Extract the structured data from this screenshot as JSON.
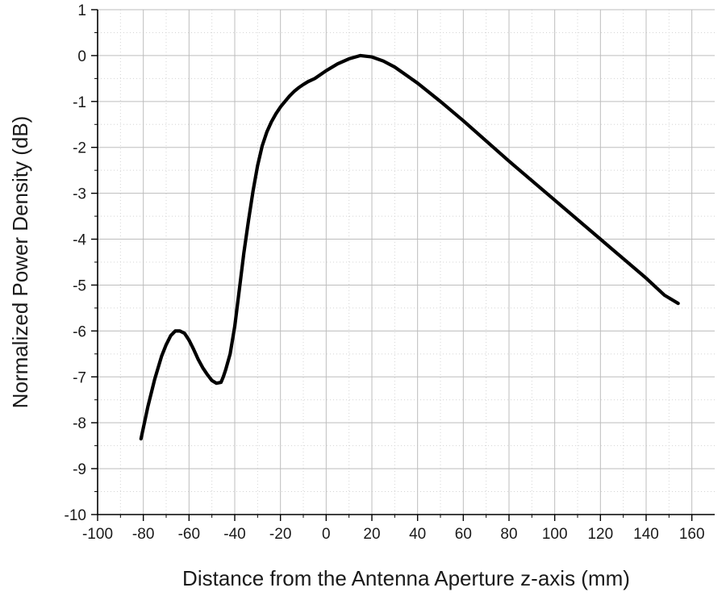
{
  "chart_data": {
    "type": "line",
    "xlabel": "Distance from the Antenna Aperture z-axis (mm)",
    "ylabel": "Normalized Power Density (dB)",
    "xlim": [
      -100,
      170
    ],
    "ylim": [
      -10,
      1
    ],
    "xticks": [
      -100,
      -80,
      -60,
      -40,
      -20,
      0,
      20,
      40,
      60,
      80,
      100,
      120,
      140,
      160
    ],
    "xtick_labels": [
      "-100",
      "-80",
      "-60",
      "-40",
      "-20",
      "0",
      "20",
      "40",
      "60",
      "80",
      "100",
      "120",
      "140",
      "160"
    ],
    "yticks": [
      1,
      0,
      -1,
      -2,
      -3,
      -4,
      -5,
      -6,
      -7,
      -8,
      -9,
      -10
    ],
    "ytick_labels": [
      "1",
      "0",
      "-1",
      "-2",
      "-3",
      "-4",
      "-5",
      "-6",
      "-7",
      "-8",
      "-9",
      "-10"
    ],
    "grid": true,
    "minor_grid": true,
    "line_color": "#000000",
    "series": [
      {
        "x": [
          -81,
          -78,
          -75,
          -72,
          -70,
          -68,
          -66,
          -64,
          -62,
          -60,
          -58,
          -56,
          -54,
          -52,
          -50,
          -48,
          -46,
          -45,
          -44,
          -42,
          -40,
          -38,
          -36,
          -34,
          -32,
          -30,
          -28,
          -26,
          -24,
          -22,
          -20,
          -18,
          -16,
          -14,
          -12,
          -10,
          -8,
          -5,
          0,
          5,
          10,
          15,
          20,
          25,
          30,
          40,
          50,
          60,
          80,
          100,
          120,
          140,
          148,
          154
        ],
        "y": [
          -8.35,
          -7.65,
          -7.05,
          -6.55,
          -6.3,
          -6.1,
          -6.0,
          -6.0,
          -6.05,
          -6.2,
          -6.4,
          -6.62,
          -6.8,
          -6.95,
          -7.08,
          -7.14,
          -7.12,
          -7.0,
          -6.85,
          -6.5,
          -5.9,
          -5.1,
          -4.3,
          -3.6,
          -2.95,
          -2.4,
          -1.97,
          -1.67,
          -1.45,
          -1.27,
          -1.12,
          -1.0,
          -0.88,
          -0.78,
          -0.7,
          -0.63,
          -0.57,
          -0.5,
          -0.33,
          -0.18,
          -0.07,
          0.0,
          -0.03,
          -0.12,
          -0.25,
          -0.6,
          -1.0,
          -1.42,
          -2.3,
          -3.15,
          -4.0,
          -4.85,
          -5.22,
          -5.4
        ]
      }
    ]
  }
}
